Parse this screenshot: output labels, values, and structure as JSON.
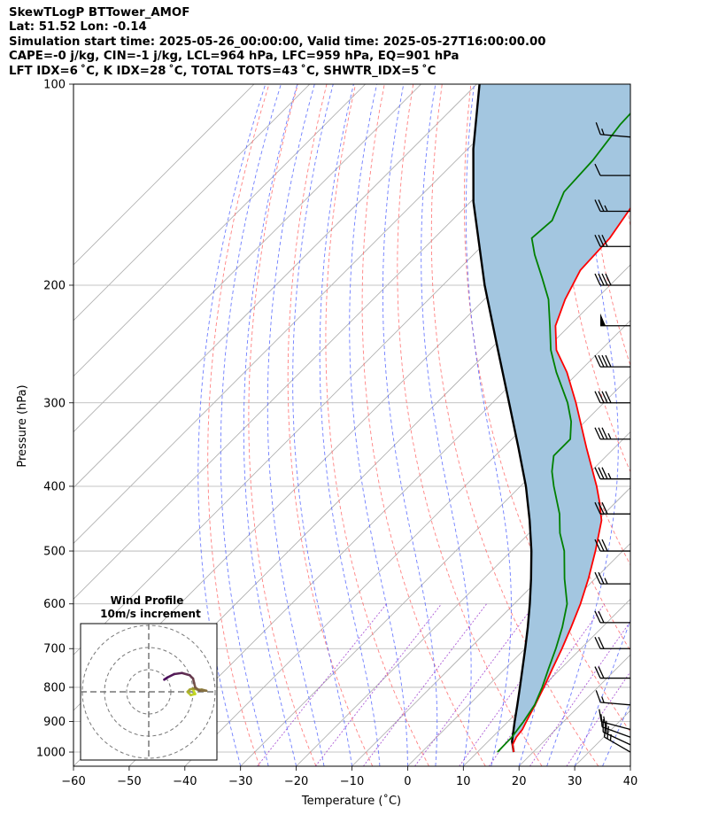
{
  "header": {
    "title": "SkewTLogP BTTower_AMOF",
    "location": "Lat: 51.52   Lon: -0.14",
    "times": "Simulation start time: 2025-05-26_00:00:00, Valid time: 2025-05-27T16:00:00.00",
    "indices1": "CAPE=-0 j/kg, CIN=-1 j/kg, LCL=964 hPa, LFC=959 hPa, EQ=901 hPa",
    "indices2": "LFT IDX=6 ˚C, K IDX=28 ˚C, TOTAL TOTS=43 ˚C, SHWTR_IDX=5 ˚C"
  },
  "colors": {
    "temperature": "#ff0000",
    "dewpoint": "#008000",
    "parcel": "#000000",
    "cape_fill": "#a3c6e0",
    "dry_adiabat": "#ff6b6b",
    "moist_adiabat": "#4a5cff",
    "mixing_ratio": "#9933cc",
    "isotherm": "#aaaaaa",
    "hodo_low": "#c8e020",
    "hodo_high": "#4a0a5c"
  },
  "chart_data": {
    "type": "skewt-logp",
    "xlabel": "Temperature (˚C)",
    "ylabel": "Pressure (hPa)",
    "xlim": [
      -60,
      40
    ],
    "ylim": [
      1050,
      100
    ],
    "x_ticks": [
      -60,
      -50,
      -40,
      -30,
      -20,
      -10,
      0,
      10,
      20,
      30,
      40
    ],
    "x_tick_labels": [
      "−60",
      "−50",
      "−40",
      "−30",
      "−20",
      "−10",
      "0",
      "10",
      "20",
      "30",
      "40"
    ],
    "y_ticks": [
      1000,
      900,
      800,
      700,
      600,
      500,
      400,
      300,
      200,
      100
    ],
    "y_tick_labels": [
      "1000",
      "900",
      "800",
      "700",
      "600",
      "500",
      "400",
      "300",
      "200",
      "100"
    ],
    "temperature_profile": [
      {
        "p": 1000,
        "t": 16.5
      },
      {
        "p": 975,
        "t": 15.0
      },
      {
        "p": 950,
        "t": 14.3
      },
      {
        "p": 925,
        "t": 14.0
      },
      {
        "p": 900,
        "t": 13.3
      },
      {
        "p": 850,
        "t": 11.9
      },
      {
        "p": 800,
        "t": 10.3
      },
      {
        "p": 750,
        "t": 8.5
      },
      {
        "p": 700,
        "t": 6.6
      },
      {
        "p": 650,
        "t": 4.4
      },
      {
        "p": 600,
        "t": 1.9
      },
      {
        "p": 550,
        "t": -1.2
      },
      {
        "p": 500,
        "t": -4.9
      },
      {
        "p": 450,
        "t": -9.3
      },
      {
        "p": 420,
        "t": -13.3
      },
      {
        "p": 400,
        "t": -16.3
      },
      {
        "p": 350,
        "t": -25.1
      },
      {
        "p": 300,
        "t": -35.0
      },
      {
        "p": 270,
        "t": -42.1
      },
      {
        "p": 250,
        "t": -48.0
      },
      {
        "p": 230,
        "t": -52.5
      },
      {
        "p": 210,
        "t": -55.5
      },
      {
        "p": 190,
        "t": -58.0
      },
      {
        "p": 170,
        "t": -58.5
      },
      {
        "p": 150,
        "t": -60.5
      },
      {
        "p": 130,
        "t": -63.0
      },
      {
        "p": 115,
        "t": -66.0
      },
      {
        "p": 100,
        "t": -70.0
      }
    ],
    "dewpoint_profile": [
      {
        "p": 1000,
        "t": 13.6
      },
      {
        "p": 950,
        "t": 13.5
      },
      {
        "p": 900,
        "t": 12.8
      },
      {
        "p": 850,
        "t": 11.8
      },
      {
        "p": 800,
        "t": 10.0
      },
      {
        "p": 750,
        "t": 7.8
      },
      {
        "p": 700,
        "t": 5.5
      },
      {
        "p": 650,
        "t": 2.8
      },
      {
        "p": 600,
        "t": -0.5
      },
      {
        "p": 550,
        "t": -5.5
      },
      {
        "p": 500,
        "t": -10.5
      },
      {
        "p": 470,
        "t": -14.5
      },
      {
        "p": 440,
        "t": -18.0
      },
      {
        "p": 400,
        "t": -24.0
      },
      {
        "p": 380,
        "t": -27.0
      },
      {
        "p": 360,
        "t": -29.5
      },
      {
        "p": 340,
        "t": -29.5
      },
      {
        "p": 320,
        "t": -32.5
      },
      {
        "p": 300,
        "t": -36.5
      },
      {
        "p": 270,
        "t": -44.0
      },
      {
        "p": 250,
        "t": -49.0
      },
      {
        "p": 230,
        "t": -53.5
      },
      {
        "p": 210,
        "t": -58.5
      },
      {
        "p": 195,
        "t": -63.5
      },
      {
        "p": 180,
        "t": -69.0
      },
      {
        "p": 170,
        "t": -72.5
      },
      {
        "p": 160,
        "t": -72.0
      },
      {
        "p": 145,
        "t": -75.0
      },
      {
        "p": 130,
        "t": -75.5
      },
      {
        "p": 115,
        "t": -77.0
      },
      {
        "p": 100,
        "t": -77.5
      }
    ],
    "parcel_profile": [
      {
        "p": 1000,
        "t": 16.5
      },
      {
        "p": 964,
        "t": 14.3
      },
      {
        "p": 900,
        "t": 11.2
      },
      {
        "p": 850,
        "t": 8.7
      },
      {
        "p": 800,
        "t": 6.0
      },
      {
        "p": 750,
        "t": 3.1
      },
      {
        "p": 700,
        "t": 0.0
      },
      {
        "p": 650,
        "t": -3.4
      },
      {
        "p": 600,
        "t": -7.2
      },
      {
        "p": 550,
        "t": -11.5
      },
      {
        "p": 500,
        "t": -16.4
      },
      {
        "p": 450,
        "t": -22.2
      },
      {
        "p": 400,
        "t": -29.0
      },
      {
        "p": 350,
        "t": -37.3
      },
      {
        "p": 300,
        "t": -47.0
      },
      {
        "p": 250,
        "t": -58.5
      },
      {
        "p": 200,
        "t": -72.5
      },
      {
        "p": 150,
        "t": -89.5
      },
      {
        "p": 125,
        "t": -99.0
      },
      {
        "p": 100,
        "t": -109.5
      }
    ],
    "wind_barbs": [
      {
        "p": 1000,
        "speed": 25,
        "dir": 240
      },
      {
        "p": 975,
        "speed": 20,
        "dir": 245
      },
      {
        "p": 950,
        "speed": 15,
        "dir": 250
      },
      {
        "p": 925,
        "speed": 15,
        "dir": 255
      },
      {
        "p": 850,
        "speed": 15,
        "dir": 265
      },
      {
        "p": 775,
        "speed": 20,
        "dir": 270
      },
      {
        "p": 700,
        "speed": 20,
        "dir": 270
      },
      {
        "p": 640,
        "speed": 20,
        "dir": 270
      },
      {
        "p": 560,
        "speed": 25,
        "dir": 270
      },
      {
        "p": 500,
        "speed": 30,
        "dir": 270
      },
      {
        "p": 440,
        "speed": 30,
        "dir": 270
      },
      {
        "p": 390,
        "speed": 35,
        "dir": 270
      },
      {
        "p": 340,
        "speed": 35,
        "dir": 270
      },
      {
        "p": 300,
        "speed": 40,
        "dir": 270
      },
      {
        "p": 265,
        "speed": 40,
        "dir": 270
      },
      {
        "p": 230,
        "speed": 50,
        "dir": 270
      },
      {
        "p": 200,
        "speed": 40,
        "dir": 270
      },
      {
        "p": 175,
        "speed": 30,
        "dir": 270
      },
      {
        "p": 155,
        "speed": 25,
        "dir": 270
      },
      {
        "p": 137,
        "speed": 10,
        "dir": 270
      },
      {
        "p": 120,
        "speed": 15,
        "dir": 265
      }
    ],
    "hodograph": {
      "title": "Wind Profile",
      "subtitle": "10m/s increment",
      "ring_speeds": [
        10,
        20,
        30
      ],
      "points": [
        {
          "u": 20.0,
          "v": 1.0
        },
        {
          "u": 21.0,
          "v": -1.0
        },
        {
          "u": 19.0,
          "v": -1.5
        },
        {
          "u": 18.0,
          "v": -0.5
        },
        {
          "u": 17.5,
          "v": 0.0
        },
        {
          "u": 18.5,
          "v": 1.0
        },
        {
          "u": 20.0,
          "v": 1.5
        },
        {
          "u": 22.0,
          "v": 1.0
        },
        {
          "u": 24.0,
          "v": 1.0
        },
        {
          "u": 26.0,
          "v": 0.5
        },
        {
          "u": 23.0,
          "v": 0.5
        },
        {
          "u": 21.0,
          "v": 2.0
        },
        {
          "u": 20.5,
          "v": 4.0
        },
        {
          "u": 20.0,
          "v": 6.0
        },
        {
          "u": 18.5,
          "v": 7.5
        },
        {
          "u": 15.0,
          "v": 8.5
        },
        {
          "u": 11.5,
          "v": 8.0
        },
        {
          "u": 8.5,
          "v": 6.5
        },
        {
          "u": 7.0,
          "v": 5.5
        }
      ]
    }
  }
}
